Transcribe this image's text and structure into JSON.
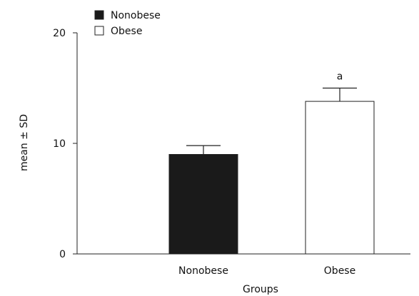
{
  "chart_data": {
    "type": "bar",
    "title": "",
    "xlabel": "Groups",
    "ylabel": "mean ± SD",
    "ylim": [
      0,
      20
    ],
    "yticks": [
      0,
      10,
      20
    ],
    "grid": false,
    "legend_position": "top-left",
    "categories": [
      "Nonobese",
      "Obese"
    ],
    "values": [
      9.0,
      13.8
    ],
    "errors": [
      0.8,
      1.2
    ],
    "annotations": [
      "",
      "a"
    ],
    "legend": [
      {
        "label": "Nonobese",
        "fill": "#1a1a1a"
      },
      {
        "label": "Obese",
        "fill": "#ffffff"
      }
    ]
  }
}
